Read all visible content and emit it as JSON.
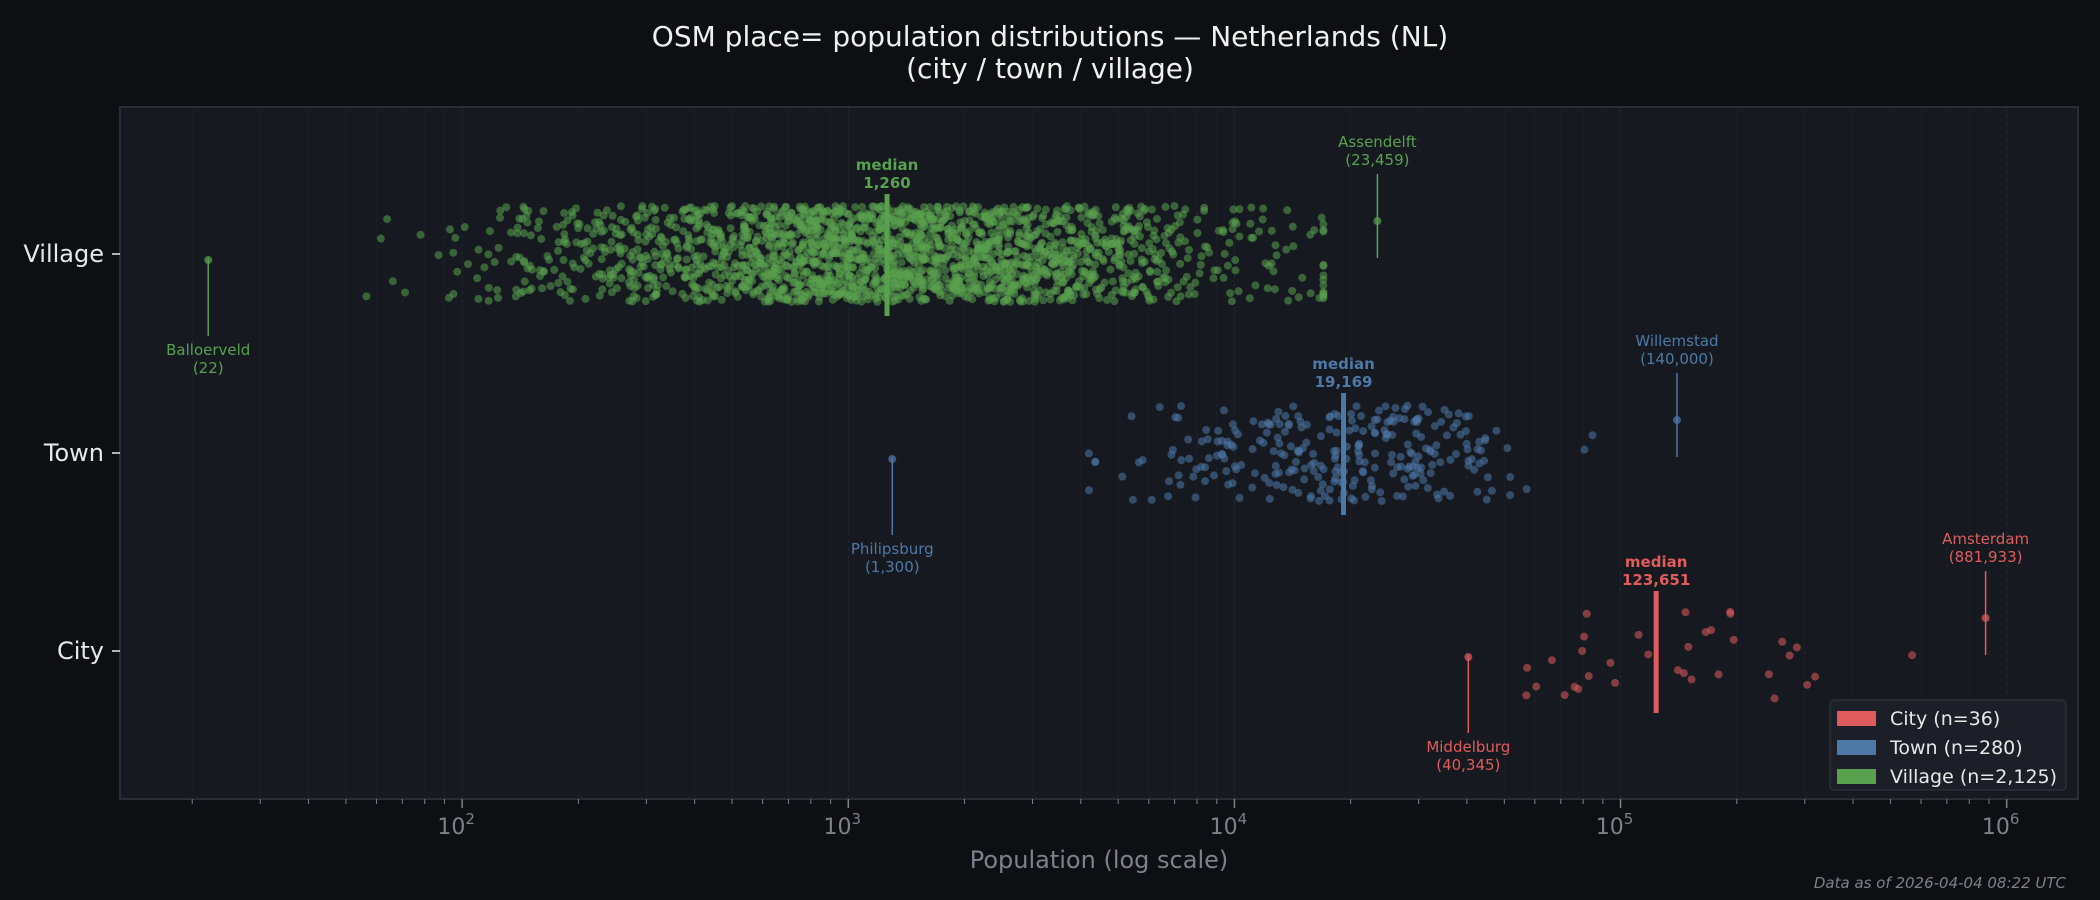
{
  "chart_data": {
    "type": "scatter",
    "title": "OSM place= population distributions — Netherlands (NL)",
    "subtitle": "(city / town / village)",
    "xlabel": "Population (log scale)",
    "ylabel": "",
    "x_scale": "log",
    "xlim": [
      13,
      1530000
    ],
    "x_tick_labels": [
      {
        "base": "10",
        "exp": "2",
        "value": 100
      },
      {
        "base": "10",
        "exp": "3",
        "value": 1000
      },
      {
        "base": "10",
        "exp": "4",
        "value": 10000
      },
      {
        "base": "10",
        "exp": "5",
        "value": 100000
      },
      {
        "base": "10",
        "exp": "6",
        "value": 1000000
      }
    ],
    "categories": [
      "Village",
      "Town",
      "City"
    ],
    "grid": "vertical dashed, major and minor",
    "legend_position": "bottom-right",
    "series": [
      {
        "key": "city",
        "category": "City",
        "legend": "City  (n=36)",
        "n": 36,
        "color": "#e05c5c",
        "median": 123651,
        "median_label": "median",
        "median_text": "123,651",
        "min": {
          "name": "Middelburg",
          "value": 40345,
          "text": "(40,345)"
        },
        "max": {
          "name": "Amsterdam",
          "value": 881933,
          "text": "(881,933)"
        }
      },
      {
        "key": "town",
        "category": "Town",
        "legend": "Town  (n=280)",
        "n": 280,
        "color": "#4e79a7",
        "median": 19169,
        "median_label": "median",
        "median_text": "19,169",
        "min": {
          "name": "Philipsburg",
          "value": 1300,
          "text": "(1,300)"
        },
        "max": {
          "name": "Willemstad",
          "value": 140000,
          "text": "(140,000)"
        }
      },
      {
        "key": "village",
        "category": "Village",
        "legend": "Village  (n=2,125)",
        "n": 2125,
        "color": "#59a14f",
        "median": 1260,
        "median_label": "median",
        "median_text": "1,260",
        "min": {
          "name": "Balloerveld",
          "value": 22,
          "text": "(22)"
        },
        "max": {
          "name": "Assendelft",
          "value": 23459,
          "text": "(23,459)"
        }
      }
    ]
  },
  "footer": "Data as of 2026-04-04 08:22 UTC",
  "colors": {
    "background": "#0e0f13",
    "plot_background": "#161920",
    "text": "#e8e8e8",
    "muted": "#7d818c"
  }
}
